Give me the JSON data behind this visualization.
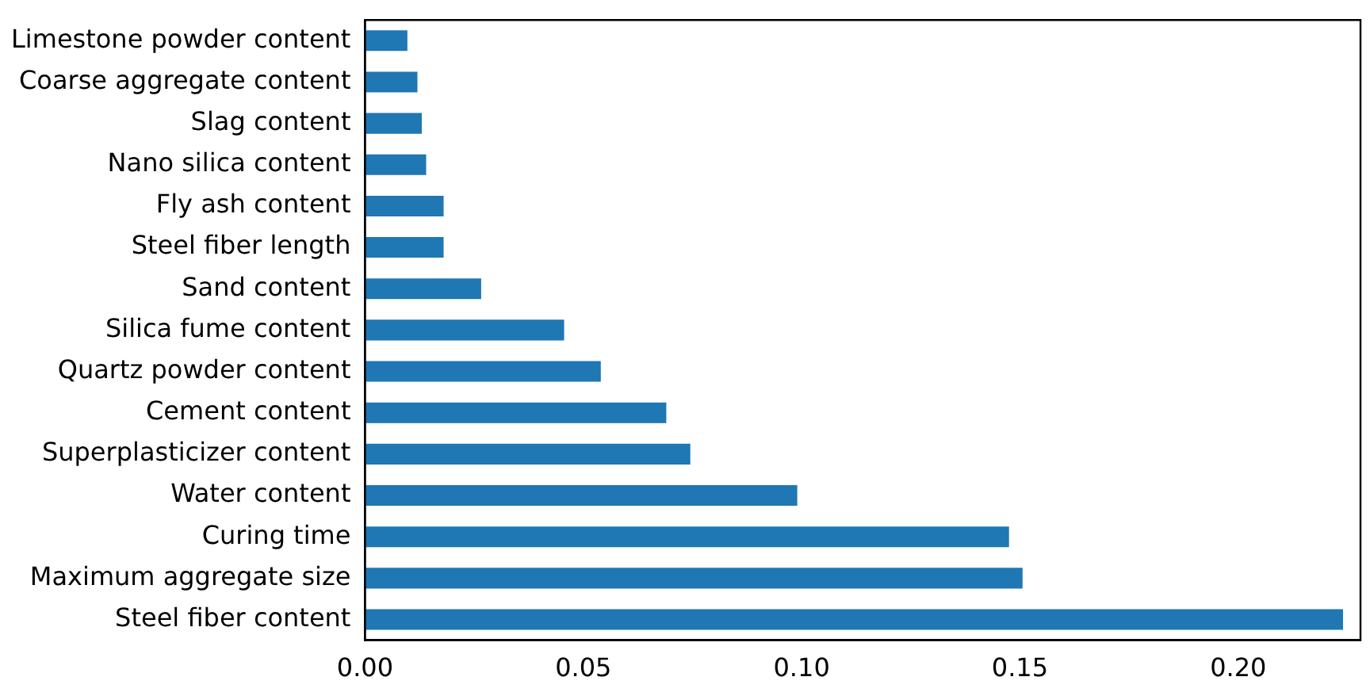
{
  "chart_data": {
    "type": "bar",
    "orientation": "horizontal",
    "categories": [
      "Limestone powder content",
      "Coarse aggregate content",
      "Slag content",
      "Nano silica content",
      "Fly ash content",
      "Steel fiber length",
      "Sand content",
      "Silica fume content",
      "Quartz powder content",
      "Cement content",
      "Superplasticizer content",
      "Water content",
      "Curing time",
      "Maximum aggregate size",
      "Steel fiber content"
    ],
    "values": [
      0.0097,
      0.012,
      0.013,
      0.014,
      0.018,
      0.018,
      0.0266,
      0.0456,
      0.054,
      0.069,
      0.0745,
      0.099,
      0.1475,
      0.1506,
      0.224
    ],
    "color": "#1f77b4",
    "xlim": [
      0,
      0.228
    ],
    "xticks": [
      {
        "value": 0,
        "label": "0.00"
      },
      {
        "value": 0.05,
        "label": "0.05"
      },
      {
        "value": 0.1,
        "label": "0.10"
      },
      {
        "value": 0.15,
        "label": "0.15"
      },
      {
        "value": 0.2,
        "label": "0.20"
      }
    ],
    "grid": false,
    "legend": false
  }
}
